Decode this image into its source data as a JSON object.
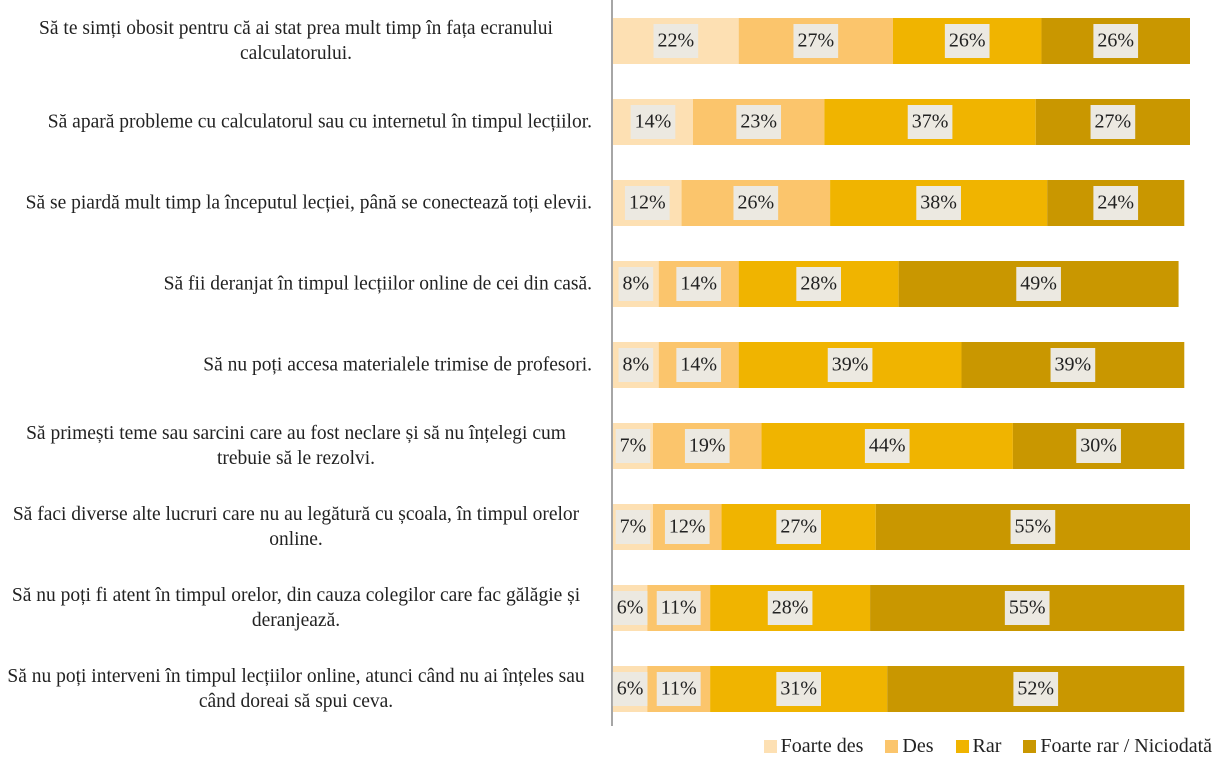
{
  "chart_data": {
    "type": "stacked-barh",
    "categories": [
      "Să te simți obosit pentru că ai stat prea mult timp în fața ecranului calculatorului.",
      "Să apară probleme cu calculatorul sau cu internetul în timpul lecțiilor.",
      "Să se piardă mult timp la începutul lecției, până se conectează toți elevii.",
      "Să fii deranjat în timpul lecțiilor online de cei din casă.",
      "Să nu poți accesa materialele trimise de profesori.",
      "Să primești teme sau sarcini care au fost neclare și să nu înțelegi cum trebuie să le rezolvi.",
      "Să faci diverse alte lucruri care nu au legătură cu școala, în timpul orelor online.",
      "Să nu poți fi atent în timpul orelor, din cauza colegilor care fac gălăgie și deranjează.",
      "Să nu poți interveni în timpul lecțiilor online, atunci când nu ai înțeles sau când doreai să spui ceva."
    ],
    "series": [
      {
        "name": "Foarte des",
        "color": "#fde0b3",
        "values": [
          22,
          14,
          12,
          8,
          8,
          7,
          7,
          6,
          6
        ],
        "value_labels": [
          "22%",
          "14%",
          "12%",
          "8%",
          "8%",
          "7%",
          "7%",
          "6%",
          "6%"
        ]
      },
      {
        "name": "Des",
        "color": "#fbc56c",
        "values": [
          27,
          23,
          26,
          14,
          14,
          19,
          12,
          11,
          11
        ],
        "value_labels": [
          "27%",
          "23%",
          "26%",
          "14%",
          "14%",
          "19%",
          "12%",
          "11%",
          "11%"
        ]
      },
      {
        "name": "Rar",
        "color": "#f0b400",
        "values": [
          26,
          37,
          38,
          28,
          39,
          44,
          27,
          28,
          31
        ],
        "value_labels": [
          "26%",
          "37%",
          "38%",
          "28%",
          "39%",
          "44%",
          "27%",
          "28%",
          "31%"
        ]
      },
      {
        "name": "Foarte rar / Niciodată",
        "color": "#c99700",
        "values": [
          26,
          27,
          24,
          49,
          39,
          30,
          55,
          55,
          52
        ],
        "value_labels": [
          "26%",
          "27%",
          "24%",
          "49%",
          "39%",
          "30%",
          "55%",
          "55%",
          "52%"
        ]
      }
    ],
    "xlim": [
      0,
      101
    ],
    "legend": "bottom-right"
  }
}
